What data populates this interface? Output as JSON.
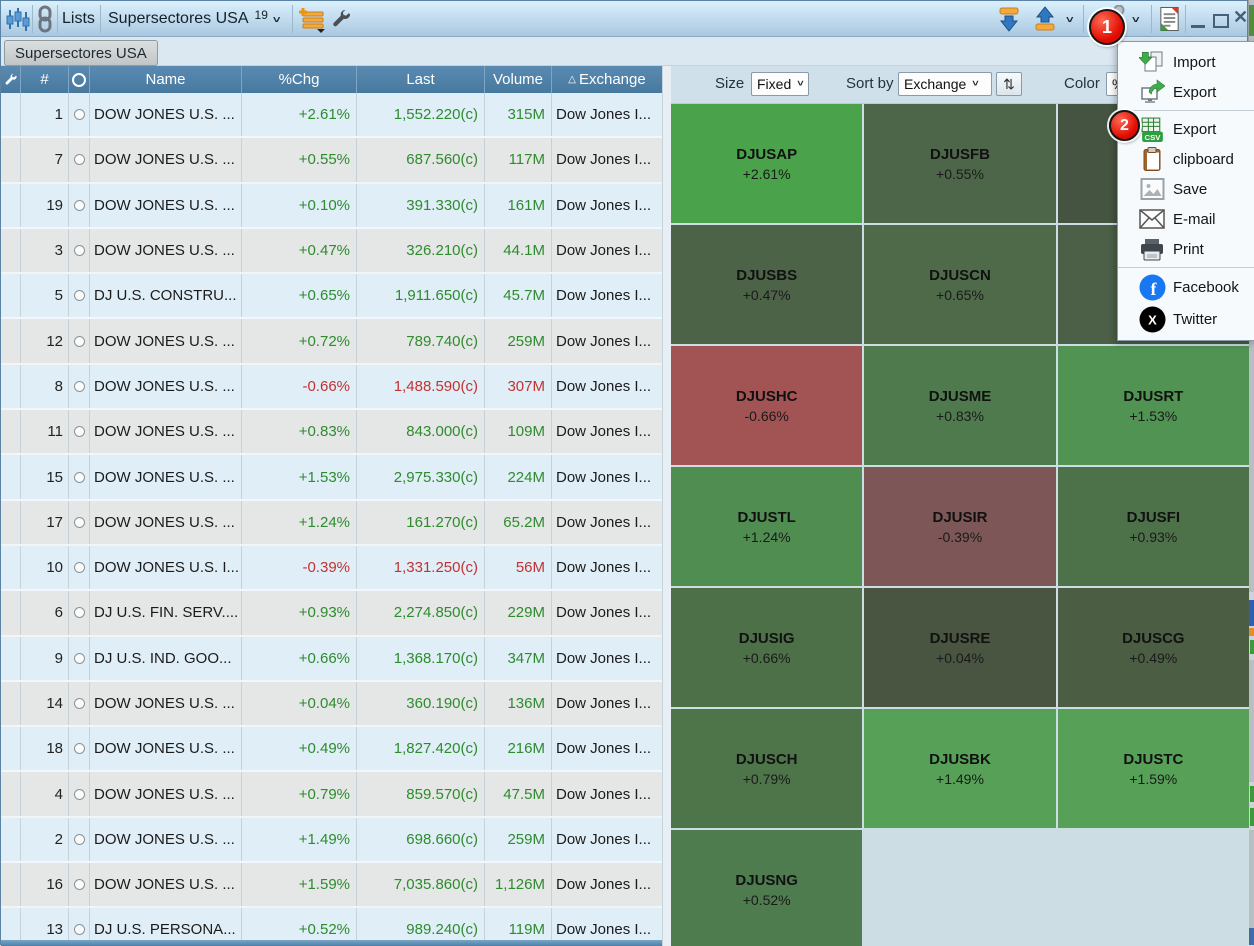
{
  "titlebar": {
    "lists_button": "Lists",
    "list_selector_label": "Supersectores USA",
    "list_selector_count": "19"
  },
  "tab_bar": {
    "active_tab": "Supersectores USA"
  },
  "table": {
    "header": {
      "num": "#",
      "name": "Name",
      "chg": "%Chg",
      "last": "Last",
      "volume": "Volume",
      "exchange": "Exchange",
      "sort_indicator": "△"
    },
    "rows": [
      {
        "num": "1",
        "name": "DOW JONES U.S. ...",
        "chg": "+2.61%",
        "last": "1,552.220(c)",
        "volume": "315M",
        "exchange": "Dow Jones I...",
        "dir": "up"
      },
      {
        "num": "7",
        "name": "DOW JONES U.S. ...",
        "chg": "+0.55%",
        "last": "687.560(c)",
        "volume": "117M",
        "exchange": "Dow Jones I...",
        "dir": "up"
      },
      {
        "num": "19",
        "name": "DOW JONES U.S. ...",
        "chg": "+0.10%",
        "last": "391.330(c)",
        "volume": "161M",
        "exchange": "Dow Jones I...",
        "dir": "up"
      },
      {
        "num": "3",
        "name": "DOW JONES U.S. ...",
        "chg": "+0.47%",
        "last": "326.210(c)",
        "volume": "44.1M",
        "exchange": "Dow Jones I...",
        "dir": "up"
      },
      {
        "num": "5",
        "name": "DJ U.S. CONSTRU...",
        "chg": "+0.65%",
        "last": "1,911.650(c)",
        "volume": "45.7M",
        "exchange": "Dow Jones I...",
        "dir": "up"
      },
      {
        "num": "12",
        "name": "DOW JONES U.S. ...",
        "chg": "+0.72%",
        "last": "789.740(c)",
        "volume": "259M",
        "exchange": "Dow Jones I...",
        "dir": "up"
      },
      {
        "num": "8",
        "name": "DOW JONES U.S. ...",
        "chg": "-0.66%",
        "last": "1,488.590(c)",
        "volume": "307M",
        "exchange": "Dow Jones I...",
        "dir": "down"
      },
      {
        "num": "11",
        "name": "DOW JONES U.S. ...",
        "chg": "+0.83%",
        "last": "843.000(c)",
        "volume": "109M",
        "exchange": "Dow Jones I...",
        "dir": "up"
      },
      {
        "num": "15",
        "name": "DOW JONES U.S. ...",
        "chg": "+1.53%",
        "last": "2,975.330(c)",
        "volume": "224M",
        "exchange": "Dow Jones I...",
        "dir": "up"
      },
      {
        "num": "17",
        "name": "DOW JONES U.S. ...",
        "chg": "+1.24%",
        "last": "161.270(c)",
        "volume": "65.2M",
        "exchange": "Dow Jones I...",
        "dir": "up"
      },
      {
        "num": "10",
        "name": "DOW JONES U.S. I...",
        "chg": "-0.39%",
        "last": "1,331.250(c)",
        "volume": "56M",
        "exchange": "Dow Jones I...",
        "dir": "down"
      },
      {
        "num": "6",
        "name": "DJ U.S. FIN. SERV....",
        "chg": "+0.93%",
        "last": "2,274.850(c)",
        "volume": "229M",
        "exchange": "Dow Jones I...",
        "dir": "up"
      },
      {
        "num": "9",
        "name": "DJ U.S. IND. GOO...",
        "chg": "+0.66%",
        "last": "1,368.170(c)",
        "volume": "347M",
        "exchange": "Dow Jones I...",
        "dir": "up"
      },
      {
        "num": "14",
        "name": "DOW JONES U.S. ...",
        "chg": "+0.04%",
        "last": "360.190(c)",
        "volume": "136M",
        "exchange": "Dow Jones I...",
        "dir": "up"
      },
      {
        "num": "18",
        "name": "DOW JONES U.S. ...",
        "chg": "+0.49%",
        "last": "1,827.420(c)",
        "volume": "216M",
        "exchange": "Dow Jones I...",
        "dir": "up"
      },
      {
        "num": "4",
        "name": "DOW JONES U.S. ...",
        "chg": "+0.79%",
        "last": "859.570(c)",
        "volume": "47.5M",
        "exchange": "Dow Jones I...",
        "dir": "up"
      },
      {
        "num": "2",
        "name": "DOW JONES U.S. ...",
        "chg": "+1.49%",
        "last": "698.660(c)",
        "volume": "259M",
        "exchange": "Dow Jones I...",
        "dir": "up"
      },
      {
        "num": "16",
        "name": "DOW JONES U.S. ...",
        "chg": "+1.59%",
        "last": "7,035.860(c)",
        "volume": "1,126M",
        "exchange": "Dow Jones I...",
        "dir": "up"
      },
      {
        "num": "13",
        "name": "DJ U.S. PERSONA...",
        "chg": "+0.52%",
        "last": "989.240(c)",
        "volume": "119M",
        "exchange": "Dow Jones I...",
        "dir": "up"
      }
    ]
  },
  "heatmap": {
    "size_label": "Size",
    "size_value": "Fixed",
    "sort_label": "Sort by",
    "sort_value": "Exchange",
    "sort_button": "⇅",
    "color_label": "Color",
    "color_value": "%",
    "cells": [
      {
        "ticker": "DJUSAP",
        "chg": "+2.61%",
        "color": "#4aa24a",
        "row": 0,
        "col": 0
      },
      {
        "ticker": "DJUSFB",
        "chg": "+0.55%",
        "color": "#4d6649",
        "row": 0,
        "col": 1
      },
      {
        "ticker": "",
        "chg": "",
        "color": "#445441",
        "row": 0,
        "col": 2
      },
      {
        "ticker": "DJUSBS",
        "chg": "+0.47%",
        "color": "#4c6347",
        "row": 1,
        "col": 0
      },
      {
        "ticker": "DJUSCN",
        "chg": "+0.65%",
        "color": "#4e6a49",
        "row": 1,
        "col": 1
      },
      {
        "ticker": "",
        "chg": "",
        "color": "#4b6046",
        "row": 1,
        "col": 2
      },
      {
        "ticker": "DJUSHC",
        "chg": "-0.66%",
        "color": "#a25454",
        "row": 2,
        "col": 0
      },
      {
        "ticker": "DJUSME",
        "chg": "+0.83%",
        "color": "#4e7a4d",
        "row": 2,
        "col": 1
      },
      {
        "ticker": "DJUSRT",
        "chg": "+1.53%",
        "color": "#509353",
        "row": 2,
        "col": 2
      },
      {
        "ticker": "DJUSTL",
        "chg": "+1.24%",
        "color": "#4f8d51",
        "row": 3,
        "col": 0
      },
      {
        "ticker": "DJUSIR",
        "chg": "-0.39%",
        "color": "#7d5757",
        "row": 3,
        "col": 1
      },
      {
        "ticker": "DJUSFI",
        "chg": "+0.93%",
        "color": "#4d7249",
        "row": 3,
        "col": 2
      },
      {
        "ticker": "DJUSIG",
        "chg": "+0.66%",
        "color": "#4d7049",
        "row": 4,
        "col": 0
      },
      {
        "ticker": "DJUSRE",
        "chg": "+0.04%",
        "color": "#495541",
        "row": 4,
        "col": 1
      },
      {
        "ticker": "DJUSCG",
        "chg": "+0.49%",
        "color": "#4b5e44",
        "row": 4,
        "col": 2
      },
      {
        "ticker": "DJUSCH",
        "chg": "+0.79%",
        "color": "#4e7549",
        "row": 5,
        "col": 0
      },
      {
        "ticker": "DJUSBK",
        "chg": "+1.49%",
        "color": "#56a157",
        "row": 5,
        "col": 1
      },
      {
        "ticker": "DJUSTC",
        "chg": "+1.59%",
        "color": "#56a157",
        "row": 5,
        "col": 2
      },
      {
        "ticker": "DJUSNG",
        "chg": "+0.52%",
        "color": "#4e7c4e",
        "row": 6,
        "col": 0
      }
    ]
  },
  "menu": {
    "groups": [
      [
        {
          "id": "import",
          "label": "Import",
          "icon": "import-icon"
        },
        {
          "id": "export",
          "label": "Export",
          "icon": "export-icon"
        }
      ],
      [
        {
          "id": "export-csv",
          "label": "Export",
          "icon": "export-csv-icon"
        },
        {
          "id": "clipboard",
          "label": "clipboard",
          "icon": "clipboard-icon"
        },
        {
          "id": "save",
          "label": "Save",
          "icon": "save-icon"
        },
        {
          "id": "email",
          "label": "E-mail",
          "icon": "email-icon"
        },
        {
          "id": "print",
          "label": "Print",
          "icon": "print-icon"
        }
      ],
      [
        {
          "id": "facebook",
          "label": "Facebook",
          "icon": "facebook-icon",
          "social": true
        },
        {
          "id": "twitter",
          "label": "Twitter",
          "icon": "twitter-icon",
          "social": true
        }
      ]
    ]
  },
  "annotations": {
    "step_1": "1",
    "step_2": "2"
  },
  "colors": {
    "positive": "#2e8b2e",
    "negative": "#c23232",
    "header_blue": "#4d80a8",
    "badge_red": "#e00b00"
  }
}
